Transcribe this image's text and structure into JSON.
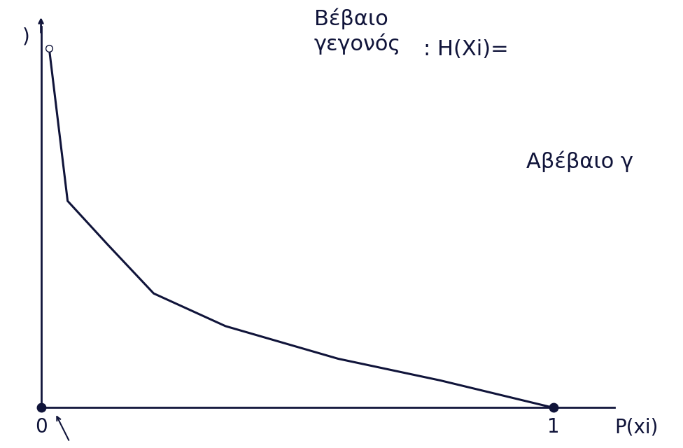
{
  "chart_data": {
    "type": "line",
    "y_label": ")",
    "x_label": "P(xi)",
    "annotations": [
      "Βέβαιο\nγεγονός",
      ": H(Xi)=",
      "Αβέβαιο γ"
    ],
    "x": [
      0.016,
      0.052,
      0.13,
      0.22,
      0.36,
      0.58,
      0.78,
      1
    ],
    "values": [
      6.6,
      3.8,
      3.0,
      2.1,
      1.5,
      0.9,
      0.5,
      0
    ],
    "color": "#10143a",
    "xlim": [
      0,
      1.12
    ],
    "ylim": [
      0,
      7
    ],
    "xticks": [
      0,
      1
    ],
    "tick_labels": "x",
    "grid": false
  }
}
